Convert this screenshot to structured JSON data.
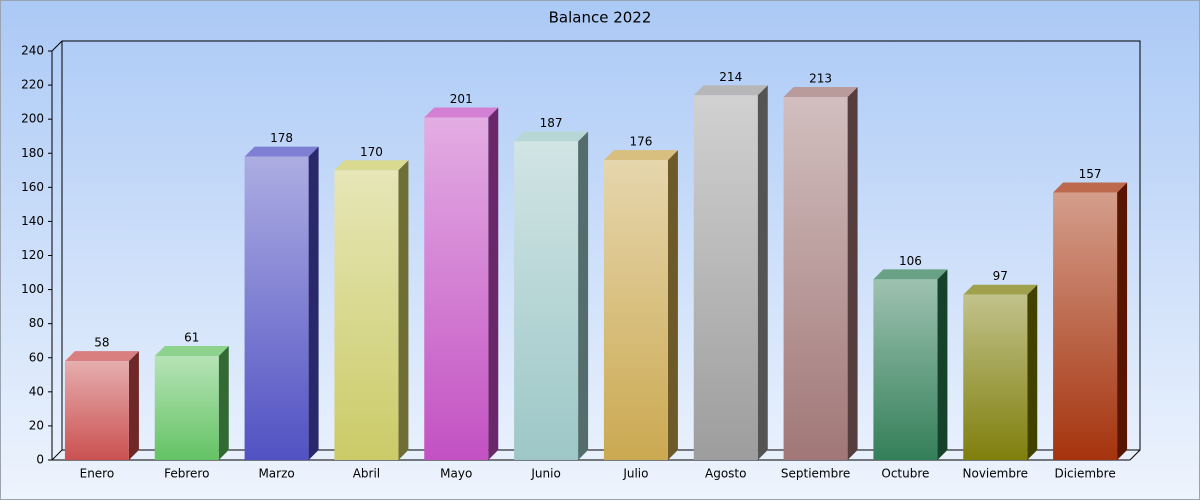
{
  "chart_data": {
    "type": "bar3d",
    "title": "Balance 2022",
    "categories": [
      "Enero",
      "Febrero",
      "Marzo",
      "Abril",
      "Mayo",
      "Junio",
      "Julio",
      "Agosto",
      "Septiembre",
      "Octubre",
      "Noviembre",
      "Diciembre"
    ],
    "values": [
      58,
      61,
      178,
      170,
      201,
      187,
      176,
      214,
      213,
      106,
      97,
      157
    ],
    "colors": [
      "#c84848",
      "#5cc05c",
      "#4848c0",
      "#c8c860",
      "#c048c0",
      "#98c4c4",
      "#c8a448",
      "#989898",
      "#9c7070",
      "#287850",
      "#787800",
      "#a02800"
    ],
    "ylim": [
      0,
      240
    ],
    "yticks": [
      0,
      20,
      40,
      60,
      80,
      100,
      120,
      140,
      160,
      180,
      200,
      220,
      240
    ]
  }
}
